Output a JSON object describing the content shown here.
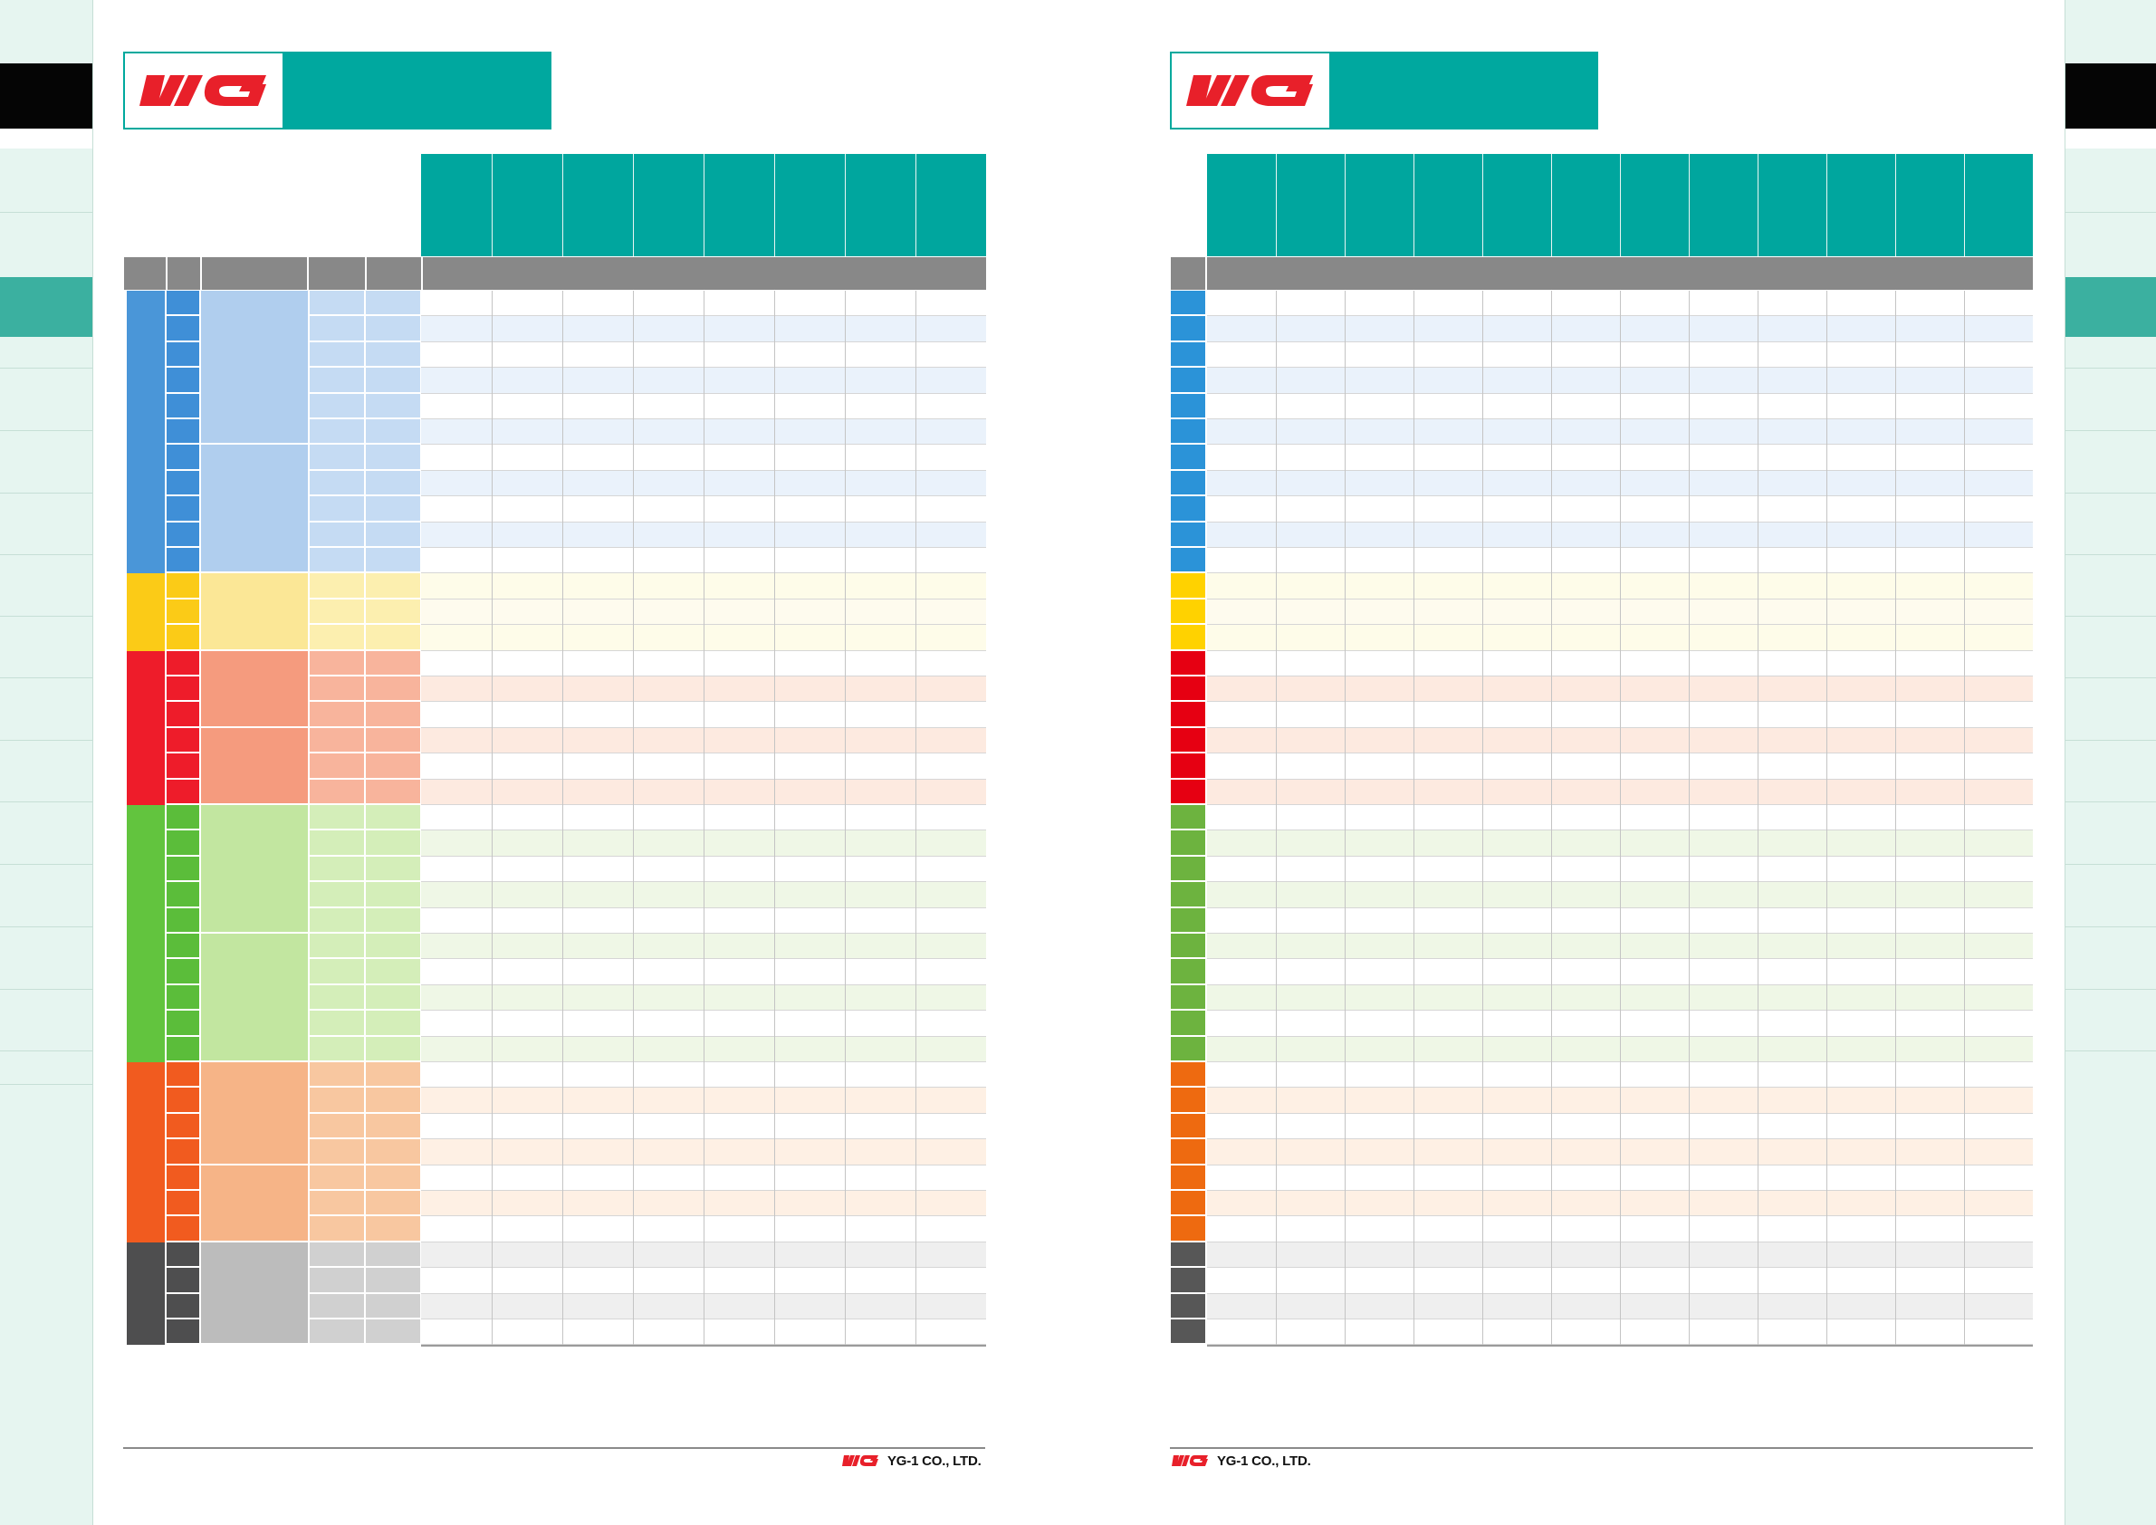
{
  "brand": {
    "logo_text": "YG",
    "footer_text": "YG-1 CO., LTD.",
    "logo_color": "#e8202a",
    "teal": "#00a89f"
  },
  "material_groups": [
    {
      "name": "blue",
      "rows": 11,
      "side": "#4a96d8",
      "sub": "#3f8fd7",
      "block": "#b0ceee",
      "col": "#c5dbf3",
      "tintA": "#ffffff",
      "tintB": "#eaf2fb",
      "rightSide": "#2b93d8"
    },
    {
      "name": "yellow",
      "rows": 3,
      "side": "#fbcb17",
      "sub": "#fbcb17",
      "block": "#fbe796",
      "col": "#fcefaf",
      "tintA": "#fefce9",
      "tintB": "#fefbee",
      "rightSide": "#ffd200"
    },
    {
      "name": "red",
      "rows": 6,
      "side": "#ee1c2a",
      "sub": "#ee1c2a",
      "block": "#f59b7e",
      "col": "#f8b49c",
      "tintA": "#ffffff",
      "tintB": "#fdeae0",
      "rightSide": "#e60012"
    },
    {
      "name": "green",
      "rows": 10,
      "side": "#62c43e",
      "sub": "#5bbd3a",
      "block": "#c2e6a0",
      "col": "#d4eeb9",
      "tintA": "#ffffff",
      "tintB": "#eff7e6",
      "rightSide": "#6db33f"
    },
    {
      "name": "orange",
      "rows": 7,
      "side": "#f15b1f",
      "sub": "#f15b1f",
      "block": "#f6b487",
      "col": "#f8c7a0",
      "tintA": "#ffffff",
      "tintB": "#fef0e4",
      "rightSide": "#ee6a10"
    },
    {
      "name": "grey",
      "rows": 4,
      "side": "#4e4e4f",
      "sub": "#4e4e4f",
      "block": "#bcbcbc",
      "col": "#d0d0d0",
      "tintA": "#efefef",
      "tintB": "#ffffff",
      "rightSide": "#575757"
    }
  ],
  "left_page": {
    "data_columns": 8
  },
  "right_page": {
    "data_columns": 12
  }
}
